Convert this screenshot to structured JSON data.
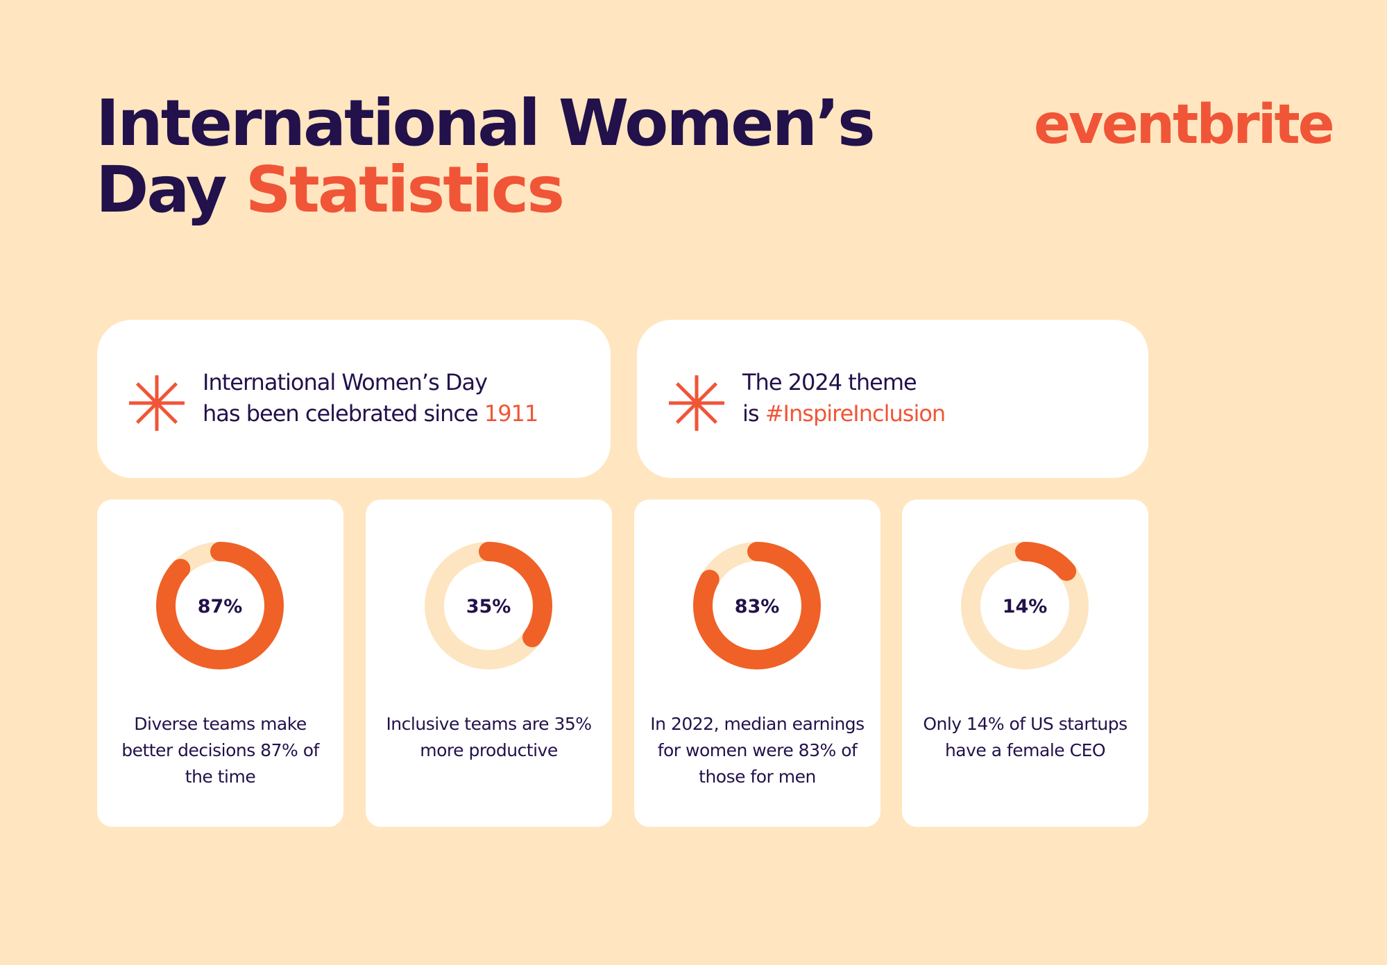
{
  "header": {
    "title_line1": "International Women’s",
    "title_line2": "Day",
    "title_highlight": "Statistics",
    "logo": "eventbrite"
  },
  "facts": [
    {
      "line1": "International Women’s Day",
      "line2": "has been celebrated since",
      "highlight": "1911"
    },
    {
      "line1": "The 2024 theme",
      "line2": "is",
      "highlight": "#InspireInclusion"
    }
  ],
  "stats": {
    "values": [
      87,
      35,
      83,
      14
    ],
    "value_labels": [
      "87%",
      "35%",
      "83%",
      "14%"
    ],
    "captions": [
      "Diverse teams make better decisions 87% of the time",
      "Inclusive teams are 35% more productive",
      "In 2022, median earnings for women were 83% of those for men",
      "Only 14% of US startups have a female CEO"
    ]
  }
}
